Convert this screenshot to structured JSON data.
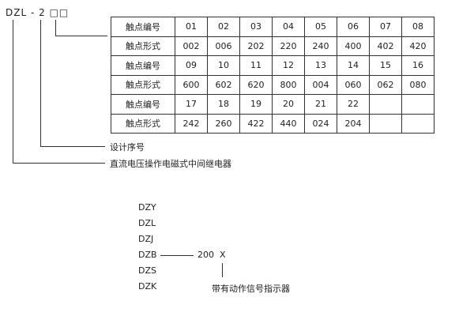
{
  "model_code": {
    "prefix": "DZL - 2",
    "placeholder_boxes": "□□"
  },
  "table": {
    "rows": [
      {
        "label": "触点编号",
        "cells": [
          "01",
          "02",
          "03",
          "04",
          "05",
          "06",
          "07",
          "08"
        ]
      },
      {
        "label": "触点形式",
        "cells": [
          "002",
          "006",
          "202",
          "220",
          "240",
          "400",
          "402",
          "420"
        ]
      },
      {
        "label": "触点编号",
        "cells": [
          "09",
          "10",
          "11",
          "12",
          "13",
          "14",
          "15",
          "16"
        ]
      },
      {
        "label": "触点形式",
        "cells": [
          "600",
          "602",
          "620",
          "800",
          "004",
          "060",
          "062",
          "080"
        ]
      },
      {
        "label": "触点编号",
        "cells": [
          "17",
          "18",
          "19",
          "20",
          "21",
          "22",
          "",
          ""
        ]
      },
      {
        "label": "触点形式",
        "cells": [
          "242",
          "260",
          "422",
          "440",
          "024",
          "204",
          "",
          ""
        ]
      }
    ]
  },
  "annotations": {
    "design_serial": "设计序号",
    "relay_type": "直流电压操作电磁式中间继电器"
  },
  "series": {
    "models": [
      "DZY",
      "DZL",
      "DZJ",
      "DZB",
      "DZS",
      "DZK"
    ],
    "suffix_number": "200",
    "suffix_letter": "X",
    "suffix_note": "带有动作信号指示器"
  }
}
